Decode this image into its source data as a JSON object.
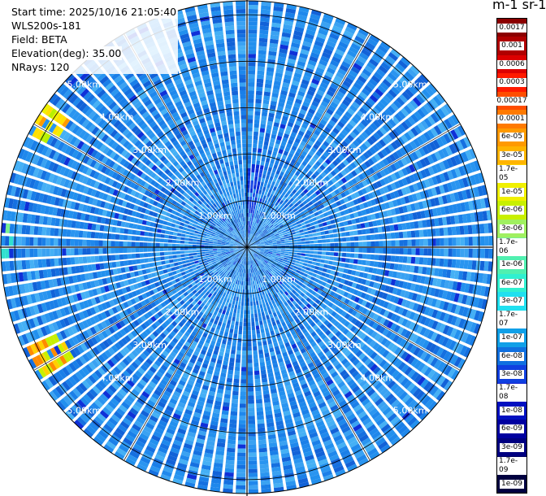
{
  "header": {
    "start_time": "Start time: 2025/10/16 21:05:40",
    "instrument": "WLS200s-181",
    "field": "Field: BETA",
    "elevation": "Elevation(deg): 35.00",
    "nrays": "NRays: 120"
  },
  "colorbar": {
    "unit_title": "m-1 sr-1",
    "labels": [
      "0.0017",
      "0.001",
      "0.0006",
      "0.0003",
      "0.00017",
      "0.0001",
      "6e-05",
      "3e-05",
      "1.7e-05",
      "1e-05",
      "6e-06",
      "3e-06",
      "1.7e-06",
      "1e-06",
      "6e-07",
      "3e-07",
      "1.7e-07",
      "1e-07",
      "6e-08",
      "3e-08",
      "1.7e-08",
      "1e-08",
      "6e-09",
      "3e-09",
      "1.7e-09",
      "1e-09"
    ],
    "colors": [
      "#8b0000",
      "#b00000",
      "#dc0000",
      "#ff1a00",
      "#ff4d00",
      "#ff7a00",
      "#ff9a00",
      "#ffb400",
      "#ffd000",
      "#f0f000",
      "#c8f000",
      "#a0f060",
      "#78f090",
      "#50f0b0",
      "#30f0d0",
      "#20e0f0",
      "#10c0f0",
      "#10a0e8",
      "#1070e0",
      "#1040e0",
      "#1020d0",
      "#0010c0",
      "#0000a0",
      "#000080",
      "#000060",
      "#000040"
    ]
  },
  "chart_data": {
    "type": "heatmap",
    "projection": "polar PPI",
    "field": "BETA",
    "elevation_deg": 35.0,
    "nrays": 120,
    "range_rings_km": [
      1,
      2,
      3,
      4,
      5
    ],
    "ring_labels": [
      "1.00km",
      "2.00km",
      "3.00km",
      "4.00km",
      "5.00km"
    ],
    "max_range_km": 5.3,
    "dominant_value": "6e-08",
    "background_range": [
      "3e-08",
      "1e-07"
    ],
    "features": [
      {
        "azimuth_deg_from_north": 5,
        "range_km": [
          0.2,
          1.8
        ],
        "value": "1e-08",
        "note": "low backscatter sector"
      },
      {
        "azimuth_deg_from_north": 300,
        "range_km": [
          4.6,
          5.3
        ],
        "value": "1e-05",
        "note": "high backscatter near far range"
      },
      {
        "azimuth_deg_from_north": 240,
        "range_km": [
          4.4,
          5.2
        ],
        "value": "1.7e-05"
      },
      {
        "azimuth_deg_from_north": 270,
        "range_km": [
          5.0,
          5.3
        ],
        "value": "1e-06"
      }
    ]
  }
}
